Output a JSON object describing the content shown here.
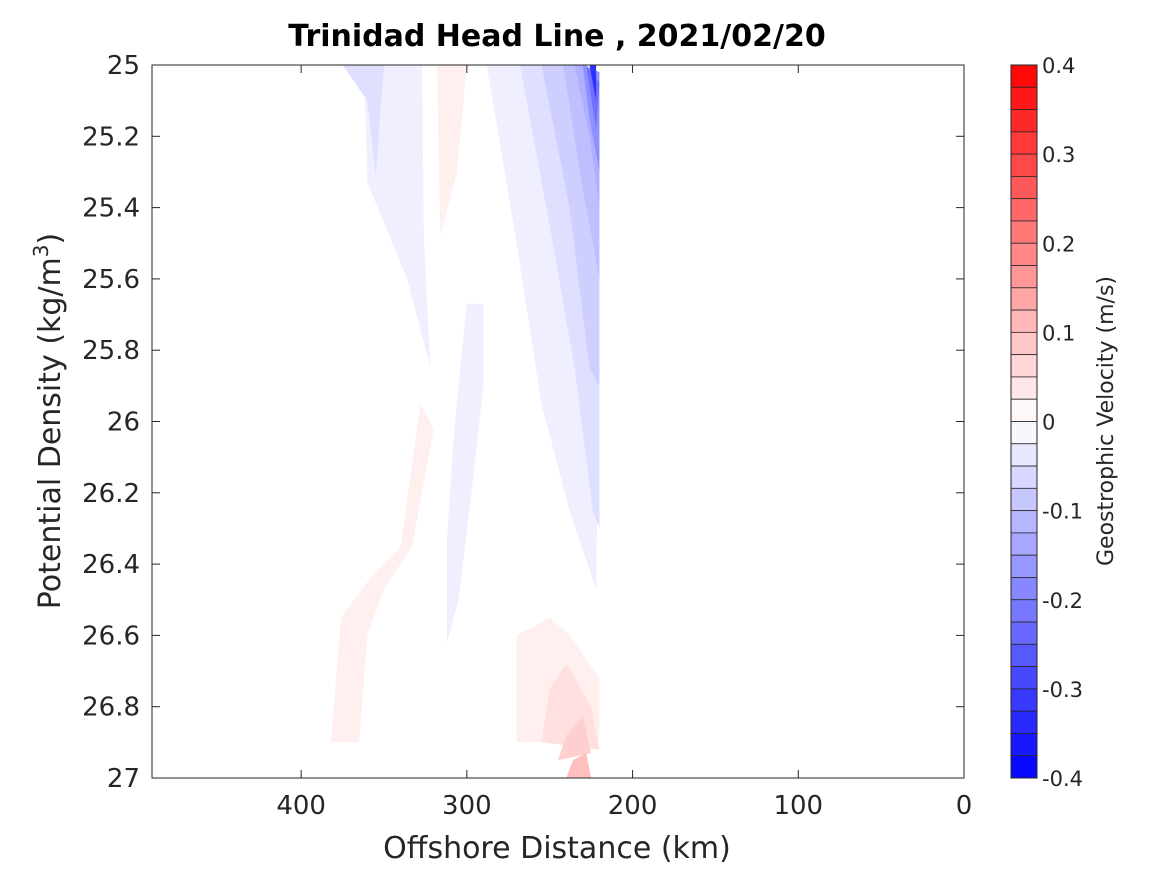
{
  "chart_data": {
    "type": "heatmap",
    "title": "Trinidad Head Line , 2021/02/20",
    "xlabel": "Offshore Distance (km)",
    "ylabel": "Potential Density (kg/m",
    "ylabel_superscript": "3",
    "ylabel_suffix": ")",
    "x_reversed": true,
    "y_reversed": true,
    "xlim": [
      490,
      0
    ],
    "ylim": [
      25,
      27
    ],
    "x_ticks": [
      400,
      300,
      200,
      100,
      0
    ],
    "x_tick_labels": [
      "400",
      "300",
      "200",
      "100",
      "0"
    ],
    "y_ticks": [
      25,
      25.2,
      25.4,
      25.6,
      25.8,
      26,
      26.2,
      26.4,
      26.6,
      26.8,
      27
    ],
    "y_tick_labels": [
      "25",
      "25.2",
      "25.4",
      "25.6",
      "25.8",
      "26",
      "26.2",
      "26.4",
      "26.6",
      "26.8",
      "27"
    ],
    "grid": false,
    "colorbar": {
      "label": "Geostrophic Velocity (m/s)",
      "min": -0.4,
      "max": 0.4,
      "step": 0.025,
      "ticks": [
        0.4,
        0.3,
        0.2,
        0.1,
        0,
        -0.1,
        -0.2,
        -0.3,
        -0.4
      ],
      "tick_labels": [
        "0.4",
        "0.3",
        "0.2",
        "0.1",
        "0",
        "-0.1",
        "-0.2",
        "-0.3",
        "-0.4"
      ],
      "min_color": "#0000ff",
      "mid_color": "#ffffff",
      "max_color": "#ff0000"
    },
    "regions": [
      {
        "name": "band1",
        "level": -0.025,
        "polygon": [
          [
            386,
            25
          ],
          [
            362,
            25
          ],
          [
            360,
            25.33
          ],
          [
            336,
            25.6
          ],
          [
            322,
            25.85
          ],
          [
            326,
            25.48
          ],
          [
            327,
            25
          ]
        ],
        "holes": []
      },
      {
        "name": "band1",
        "level": -0.025,
        "polygon": [
          [
            288,
            25
          ],
          [
            270,
            25.5
          ],
          [
            255,
            25.95
          ],
          [
            238,
            26.25
          ],
          [
            222,
            26.47
          ],
          [
            220,
            25.85
          ],
          [
            235,
            25.45
          ],
          [
            250,
            25.1
          ],
          [
            268,
            25
          ]
        ],
        "holes": []
      },
      {
        "name": "band1",
        "level": -0.025,
        "polygon": [
          [
            300,
            25.67
          ],
          [
            290,
            25.67
          ],
          [
            290,
            25.9
          ],
          [
            296,
            26.15
          ],
          [
            305,
            26.5
          ],
          [
            312,
            26.62
          ],
          [
            312,
            26.33
          ],
          [
            308,
            26.05
          ],
          [
            304,
            25.85
          ]
        ],
        "holes": []
      },
      {
        "name": "band2",
        "level": -0.05,
        "polygon": [
          [
            375,
            25
          ],
          [
            350,
            25
          ],
          [
            355,
            25.31
          ],
          [
            360,
            25.1
          ]
        ],
        "holes": []
      },
      {
        "name": "band2",
        "level": -0.05,
        "polygon": [
          [
            268,
            25
          ],
          [
            250,
            25.45
          ],
          [
            235,
            25.85
          ],
          [
            224,
            26.25
          ],
          [
            220,
            26.3
          ],
          [
            220,
            25.5
          ],
          [
            240,
            25.2
          ],
          [
            255,
            25
          ]
        ],
        "holes": []
      },
      {
        "name": "band3",
        "level": -0.075,
        "polygon": [
          [
            255,
            25
          ],
          [
            238,
            25.4
          ],
          [
            226,
            25.85
          ],
          [
            220,
            25.9
          ],
          [
            220,
            25.3
          ],
          [
            236,
            25.05
          ],
          [
            242,
            25
          ]
        ],
        "holes": []
      },
      {
        "name": "band4",
        "level": -0.1,
        "polygon": [
          [
            242,
            25
          ],
          [
            230,
            25.35
          ],
          [
            220,
            25.6
          ],
          [
            220,
            25.2
          ],
          [
            235,
            25
          ]
        ],
        "holes": []
      },
      {
        "name": "band5",
        "level": -0.125,
        "polygon": [
          [
            235,
            25
          ],
          [
            226,
            25.2
          ],
          [
            220,
            25.4
          ],
          [
            220,
            25.1
          ],
          [
            228,
            25
          ]
        ],
        "holes": []
      },
      {
        "name": "band6",
        "level": -0.175,
        "polygon": [
          [
            230,
            25
          ],
          [
            226,
            25.15
          ],
          [
            220,
            25.3
          ],
          [
            220,
            25.02
          ]
        ],
        "holes": []
      },
      {
        "name": "band7",
        "level": -0.225,
        "polygon": [
          [
            228,
            25
          ],
          [
            222,
            25.18
          ],
          [
            220,
            25.05
          ]
        ],
        "holes": []
      },
      {
        "name": "band8",
        "level": -0.325,
        "polygon": [
          [
            226,
            25
          ],
          [
            222,
            25.1
          ],
          [
            222,
            25
          ]
        ],
        "holes": []
      },
      {
        "name": "red1",
        "level": 0.025,
        "polygon": [
          [
            318,
            25
          ],
          [
            300,
            25
          ],
          [
            306,
            25.3
          ],
          [
            316,
            25.48
          ]
        ],
        "holes": []
      },
      {
        "name": "red1",
        "level": 0.025,
        "polygon": [
          [
            328,
            25.95
          ],
          [
            320,
            26.02
          ],
          [
            333,
            26.35
          ],
          [
            350,
            26.47
          ],
          [
            360,
            26.6
          ],
          [
            365,
            26.9
          ],
          [
            382,
            26.9
          ],
          [
            376,
            26.55
          ],
          [
            360,
            26.45
          ],
          [
            340,
            26.35
          ]
        ],
        "holes": []
      },
      {
        "name": "red1",
        "level": 0.025,
        "polygon": [
          [
            270,
            26.6
          ],
          [
            270,
            26.9
          ],
          [
            220,
            26.9
          ],
          [
            220,
            26.72
          ],
          [
            238,
            26.6
          ],
          [
            250,
            26.55
          ]
        ],
        "holes": []
      },
      {
        "name": "red2",
        "level": 0.05,
        "polygon": [
          [
            255,
            26.9
          ],
          [
            220,
            26.92
          ],
          [
            225,
            26.8
          ],
          [
            240,
            26.68
          ],
          [
            250,
            26.75
          ]
        ],
        "holes": []
      },
      {
        "name": "red3",
        "level": 0.075,
        "polygon": [
          [
            245,
            26.95
          ],
          [
            225,
            26.93
          ],
          [
            230,
            26.83
          ],
          [
            240,
            26.88
          ]
        ],
        "holes": []
      },
      {
        "name": "red4",
        "level": 0.1,
        "polygon": [
          [
            240,
            27
          ],
          [
            225,
            27
          ],
          [
            228,
            26.93
          ],
          [
            236,
            26.95
          ]
        ],
        "holes": []
      }
    ]
  }
}
